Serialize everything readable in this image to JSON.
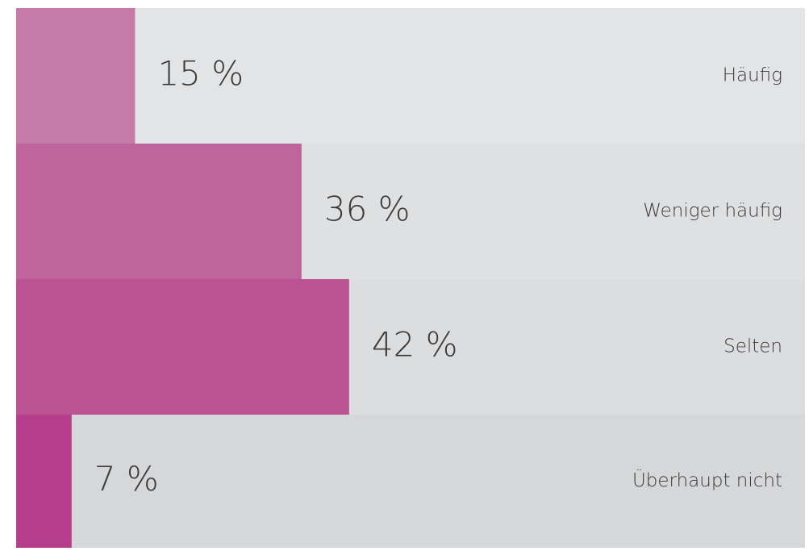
{
  "chart_data": {
    "type": "bar",
    "orientation": "horizontal",
    "categories": [
      "Häufig",
      "Weniger häufig",
      "Selten",
      "Überhaupt nicht"
    ],
    "values": [
      15,
      36,
      42,
      7
    ],
    "value_labels": [
      "15 %",
      "36 %",
      "42 %",
      "7 %"
    ],
    "colors": [
      "#c67aa8",
      "#c0649e",
      "#bb5291",
      "#b73e8c"
    ],
    "xlim": [
      0,
      100
    ]
  }
}
